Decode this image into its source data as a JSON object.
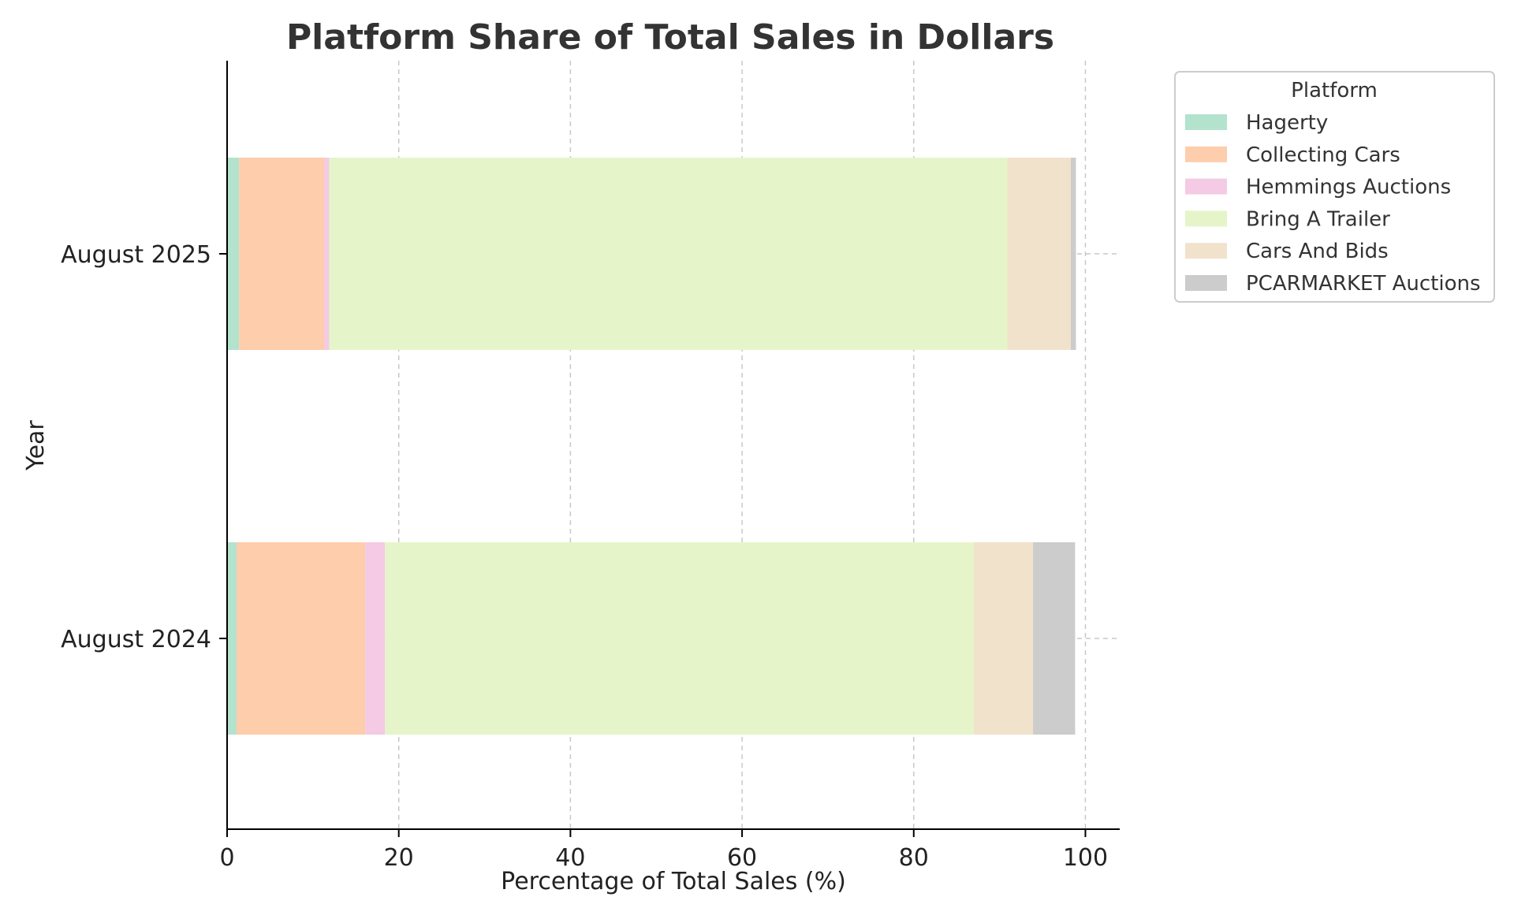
{
  "chart_data": {
    "type": "bar",
    "orientation": "horizontal",
    "stacked": true,
    "title": "Platform Share of Total Sales in Dollars",
    "xlabel": "Percentage of Total Sales (%)",
    "ylabel": "Year",
    "xlim": [
      0,
      104
    ],
    "xticks": [
      "0",
      "20",
      "40",
      "60",
      "80",
      "100"
    ],
    "grid": true,
    "categories": [
      "August 2024",
      "August 2025"
    ],
    "legend": {
      "title": "Platform",
      "position": "outside-top-right"
    },
    "series": [
      {
        "name": "Hagerty",
        "color": "#b3e2cd",
        "values": [
          1.1,
          1.4
        ]
      },
      {
        "name": "Collecting Cars",
        "color": "#fdcdac",
        "values": [
          15.0,
          9.9
        ]
      },
      {
        "name": "Hemmings Auctions",
        "color": "#f4cae4",
        "values": [
          2.3,
          0.6
        ]
      },
      {
        "name": "Bring A Trailer",
        "color": "#e6f5c9",
        "values": [
          68.6,
          79.0
        ]
      },
      {
        "name": "Cars And Bids",
        "color": "#f1e2cc",
        "values": [
          6.9,
          7.4
        ]
      },
      {
        "name": "PCARMARKET Auctions",
        "color": "#cccccc",
        "values": [
          4.9,
          0.6
        ]
      }
    ]
  }
}
